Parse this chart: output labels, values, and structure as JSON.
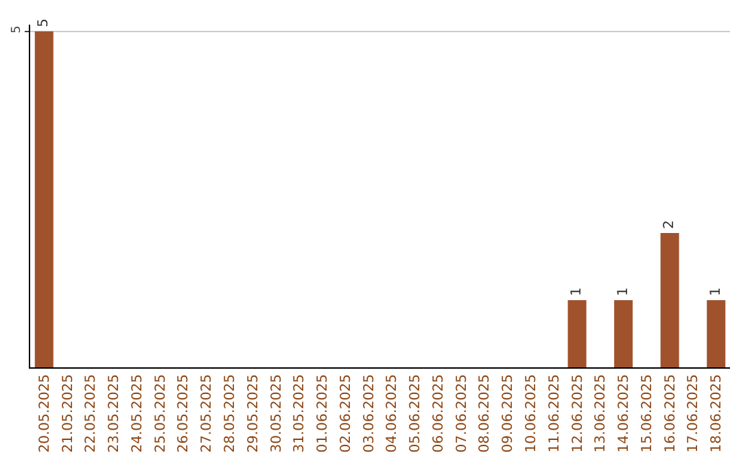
{
  "chart_data": {
    "type": "bar",
    "categories": [
      "20.05.2025",
      "21.05.2025",
      "22.05.2025",
      "23.05.2025",
      "24.05.2025",
      "25.05.2025",
      "26.05.2025",
      "27.05.2025",
      "28.05.2025",
      "29.05.2025",
      "30.05.2025",
      "31.05.2025",
      "01.06.2025",
      "02.06.2025",
      "03.06.2025",
      "04.06.2025",
      "05.06.2025",
      "06.06.2025",
      "07.06.2025",
      "08.06.2025",
      "09.06.2025",
      "10.06.2025",
      "11.06.2025",
      "12.06.2025",
      "13.06.2025",
      "14.06.2025",
      "15.06.2025",
      "16.06.2025",
      "17.06.2025",
      "18.06.2025"
    ],
    "values": [
      5,
      0,
      0,
      0,
      0,
      0,
      0,
      0,
      0,
      0,
      0,
      0,
      0,
      0,
      0,
      0,
      0,
      0,
      0,
      0,
      0,
      0,
      0,
      1,
      0,
      1,
      0,
      2,
      0,
      1
    ],
    "value_labels": [
      "5",
      null,
      null,
      null,
      null,
      null,
      null,
      null,
      null,
      null,
      null,
      null,
      null,
      null,
      null,
      null,
      null,
      null,
      null,
      null,
      null,
      null,
      null,
      "1",
      null,
      "1",
      null,
      "2",
      null,
      "1"
    ],
    "color": "#a0522d",
    "ylim": [
      0,
      5.1
    ],
    "yticks": [
      5
    ],
    "grid": "y",
    "legend": false
  }
}
